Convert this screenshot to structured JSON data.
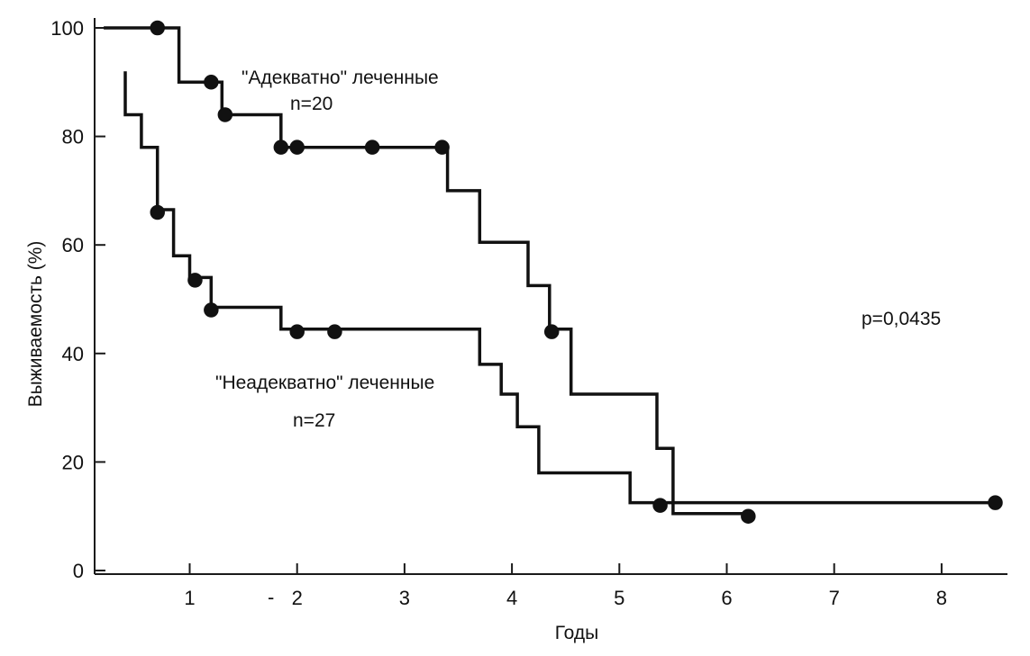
{
  "chart_data": {
    "type": "line",
    "step": true,
    "xlabel": "Годы",
    "ylabel": "Выживаемость (%)",
    "xlim": [
      0.2,
      8.6
    ],
    "ylim": [
      0,
      100
    ],
    "x_ticks": [
      1,
      2,
      3,
      4,
      5,
      6,
      7,
      8
    ],
    "y_ticks": [
      0,
      20,
      40,
      60,
      80,
      100
    ],
    "grid": false,
    "p_value_text": "p=0,0435",
    "series": [
      {
        "name": "\"Адекватно\" леченные",
        "n_label": "n=20",
        "steps": [
          [
            0.2,
            100
          ],
          [
            0.9,
            100
          ],
          [
            0.9,
            90
          ],
          [
            1.3,
            90
          ],
          [
            1.3,
            84
          ],
          [
            1.85,
            84
          ],
          [
            1.85,
            78
          ],
          [
            3.4,
            78
          ],
          [
            3.4,
            70
          ],
          [
            3.7,
            70
          ],
          [
            3.7,
            60.5
          ],
          [
            4.15,
            60.5
          ],
          [
            4.15,
            52.5
          ],
          [
            4.35,
            52.5
          ],
          [
            4.35,
            44.5
          ],
          [
            4.55,
            44.5
          ],
          [
            4.55,
            32.5
          ],
          [
            5.35,
            32.5
          ],
          [
            5.35,
            22.5
          ],
          [
            5.5,
            22.5
          ],
          [
            5.5,
            10.5
          ],
          [
            6.2,
            10.5
          ]
        ],
        "censored": [
          [
            0.7,
            100
          ],
          [
            1.2,
            90
          ],
          [
            1.33,
            84
          ],
          [
            1.85,
            78
          ],
          [
            2.0,
            78
          ],
          [
            2.7,
            78
          ],
          [
            3.35,
            78
          ],
          [
            4.37,
            44
          ],
          [
            6.2,
            10
          ]
        ]
      },
      {
        "name": "\"Неадекватно\" леченные",
        "n_label": "n=27",
        "steps": [
          [
            0.4,
            92
          ],
          [
            0.4,
            84
          ],
          [
            0.55,
            84
          ],
          [
            0.55,
            78
          ],
          [
            0.7,
            78
          ],
          [
            0.7,
            66.5
          ],
          [
            0.85,
            66.5
          ],
          [
            0.85,
            58
          ],
          [
            1.0,
            58
          ],
          [
            1.0,
            54
          ],
          [
            1.2,
            54
          ],
          [
            1.2,
            48.5
          ],
          [
            1.85,
            48.5
          ],
          [
            1.85,
            44.5
          ],
          [
            3.7,
            44.5
          ],
          [
            3.7,
            38
          ],
          [
            3.9,
            38
          ],
          [
            3.9,
            32.5
          ],
          [
            4.05,
            32.5
          ],
          [
            4.05,
            26.5
          ],
          [
            4.25,
            26.5
          ],
          [
            4.25,
            18
          ],
          [
            5.1,
            18
          ],
          [
            5.1,
            12.5
          ],
          [
            8.5,
            12.5
          ]
        ],
        "censored": [
          [
            0.7,
            66
          ],
          [
            1.05,
            53.5
          ],
          [
            1.2,
            48
          ],
          [
            2.0,
            44
          ],
          [
            2.35,
            44
          ],
          [
            5.38,
            12
          ],
          [
            8.5,
            12.5
          ]
        ]
      }
    ]
  },
  "stray_mark": "-"
}
